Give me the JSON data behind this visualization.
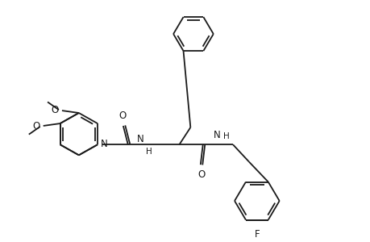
{
  "background_color": "#ffffff",
  "line_color": "#1a1a1a",
  "line_width": 1.3,
  "figsize": [
    4.6,
    3.0
  ],
  "dpi": 100,
  "methoxy_labels": [
    "O",
    "O"
  ],
  "atom_labels": [
    "N",
    "H",
    "N",
    "H",
    "O",
    "O",
    "NH",
    "F"
  ],
  "font_size": 8.5
}
